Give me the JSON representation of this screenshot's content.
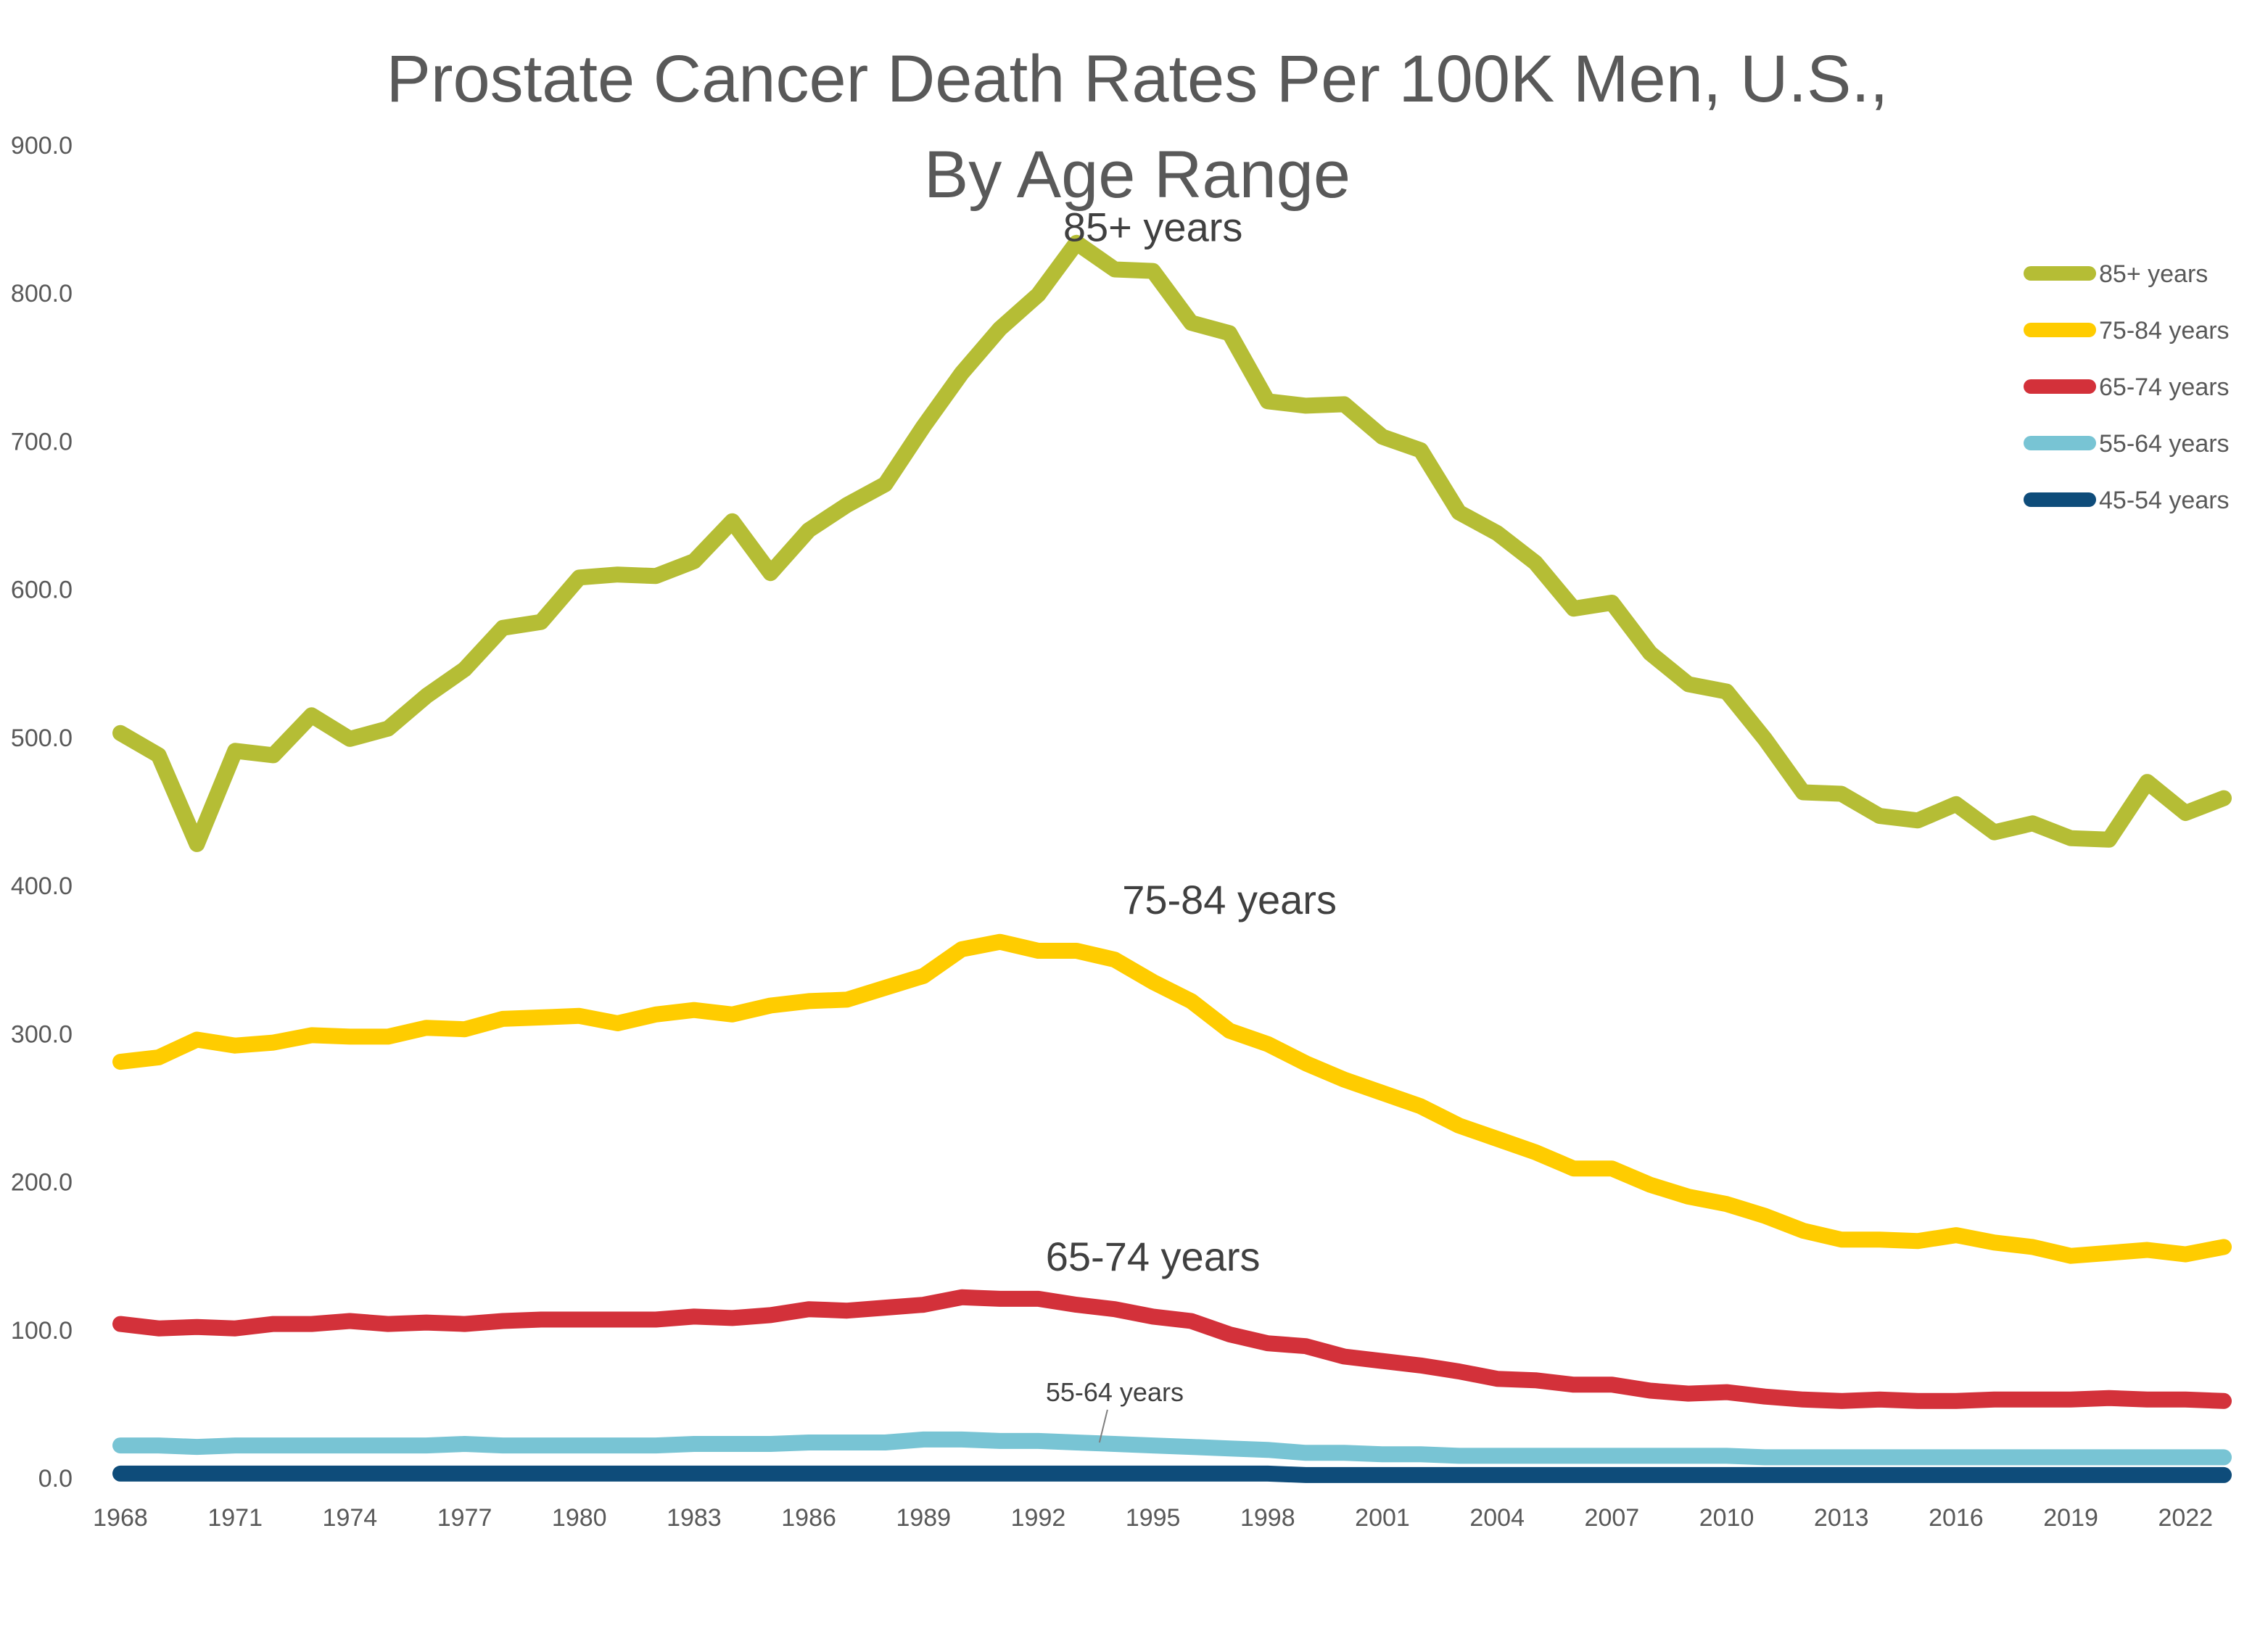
{
  "chart_data": {
    "type": "line",
    "title_lines": [
      "Prostate Cancer Death Rates Per 100K Men, U.S.,",
      "By Age Range"
    ],
    "xlabel": "",
    "ylabel": "",
    "ylim": [
      0,
      900
    ],
    "y_ticks": [
      "0.0",
      "100.0",
      "200.0",
      "300.0",
      "400.0",
      "500.0",
      "600.0",
      "700.0",
      "800.0",
      "900.0"
    ],
    "x_tick_labels": [
      "1968",
      "1971",
      "1974",
      "1977",
      "1980",
      "1983",
      "1986",
      "1989",
      "1992",
      "1995",
      "1998",
      "2001",
      "2004",
      "2007",
      "2010",
      "2013",
      "2016",
      "2019",
      "2022"
    ],
    "x_range": [
      1968,
      2023
    ],
    "grid": false,
    "legend_position": "right",
    "x": [
      1968,
      1969,
      1970,
      1971,
      1972,
      1973,
      1974,
      1975,
      1976,
      1977,
      1978,
      1979,
      1980,
      1981,
      1982,
      1983,
      1984,
      1985,
      1986,
      1987,
      1988,
      1989,
      1990,
      1991,
      1992,
      1993,
      1994,
      1995,
      1996,
      1997,
      1998,
      1999,
      2000,
      2001,
      2002,
      2003,
      2004,
      2005,
      2006,
      2007,
      2008,
      2009,
      2010,
      2011,
      2012,
      2013,
      2014,
      2015,
      2016,
      2017,
      2018,
      2019,
      2020,
      2021,
      2022,
      2023
    ],
    "series": [
      {
        "name": "85+ years",
        "color": "#B5BD35",
        "values": [
          503,
          488,
          428,
          491,
          488,
          515,
          499,
          506,
          528,
          546,
          574,
          578,
          608,
          610,
          609,
          619,
          646,
          611,
          640,
          657,
          671,
          710,
          746,
          776,
          799,
          834,
          816,
          815,
          780,
          773,
          727,
          724,
          725,
          703,
          694,
          652,
          638,
          618,
          587,
          591,
          557,
          536,
          531,
          499,
          463,
          462,
          447,
          444,
          455,
          436,
          442,
          432,
          431,
          470,
          449,
          459
        ]
      },
      {
        "name": "75-84 years",
        "color": "#FFCC00",
        "values": [
          281,
          284,
          296,
          292,
          294,
          299,
          298,
          298,
          304,
          303,
          310,
          311,
          312,
          307,
          313,
          316,
          313,
          319,
          322,
          323,
          331,
          339,
          357,
          362,
          356,
          356,
          350,
          335,
          322,
          302,
          293,
          280,
          269,
          260,
          251,
          238,
          229,
          220,
          209,
          209,
          198,
          190,
          185,
          177,
          167,
          161,
          161,
          160,
          164,
          159,
          156,
          150,
          152,
          154,
          151,
          156
        ]
      },
      {
        "name": "65-74 years",
        "color": "#D3313A",
        "values": [
          104,
          101,
          102,
          101,
          104,
          104,
          106,
          104,
          105,
          104,
          106,
          107,
          107,
          107,
          107,
          109,
          108,
          110,
          114,
          113,
          115,
          117,
          122,
          121,
          121,
          117,
          114,
          109,
          106,
          97,
          91,
          89,
          82,
          79,
          76,
          72,
          67,
          66,
          63,
          63,
          59,
          57,
          58,
          55,
          53,
          52,
          53,
          52,
          52,
          53,
          53,
          53,
          54,
          53,
          53,
          52
        ]
      },
      {
        "name": "55-64 years",
        "color": "#78C4D4",
        "values": [
          22,
          22,
          21,
          22,
          22,
          22,
          22,
          22,
          22,
          23,
          22,
          22,
          22,
          22,
          22,
          23,
          23,
          23,
          24,
          24,
          24,
          26,
          26,
          25,
          25,
          24,
          23,
          22,
          21,
          20,
          19,
          17,
          17,
          16,
          16,
          15,
          15,
          15,
          15,
          15,
          15,
          15,
          15,
          14,
          14,
          14,
          14,
          14,
          14,
          14,
          14,
          14,
          14,
          14,
          14,
          14
        ]
      },
      {
        "name": "45-54 years",
        "color": "#0E4C7A",
        "values": [
          3,
          3,
          3,
          3,
          3,
          3,
          3,
          3,
          3,
          3,
          3,
          3,
          3,
          3,
          3,
          3,
          3,
          3,
          3,
          3,
          3,
          3,
          3,
          3,
          3,
          3,
          3,
          3,
          3,
          3,
          3,
          2,
          2,
          2,
          2,
          2,
          2,
          2,
          2,
          2,
          2,
          2,
          2,
          2,
          2,
          2,
          2,
          2,
          2,
          2,
          2,
          2,
          2,
          2,
          2,
          2
        ]
      }
    ],
    "annotations": [
      {
        "text": "85+ years",
        "x": 1995,
        "y": 835,
        "size": "large"
      },
      {
        "text": "75-84 years",
        "x": 1997,
        "y": 381,
        "size": "large"
      },
      {
        "text": "65-74 years",
        "x": 1995,
        "y": 140,
        "size": "large"
      },
      {
        "text": "55-64 years",
        "x": 1994,
        "y": 52,
        "size": "small",
        "leader_to": [
          1993.6,
          24
        ]
      }
    ]
  }
}
